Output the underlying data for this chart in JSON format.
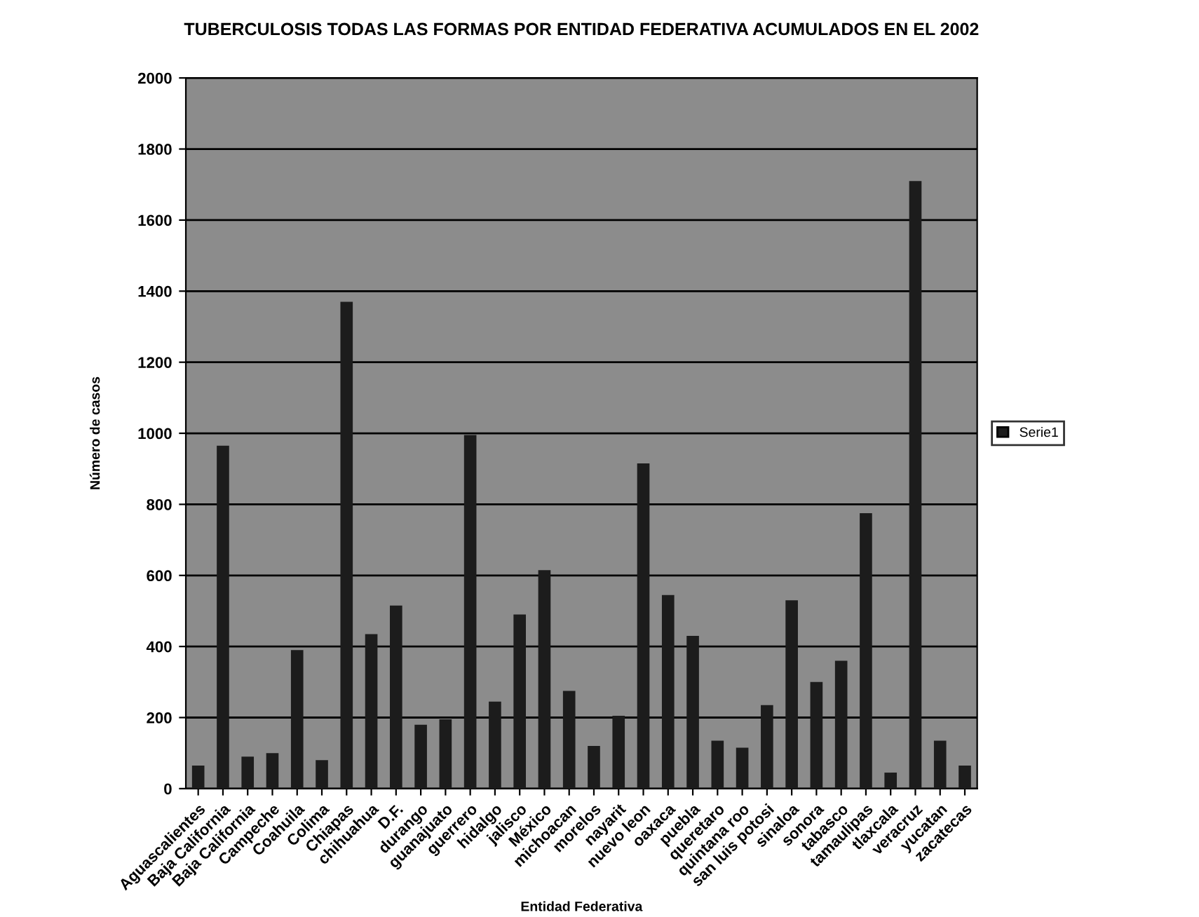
{
  "chart_data": {
    "type": "bar",
    "title": "TUBERCULOSIS TODAS LAS FORMAS POR ENTIDAD FEDERATIVA ACUMULADOS EN EL 2002",
    "xlabel": "Entidad Federativa",
    "ylabel": "Número de casos",
    "categories": [
      "Aguascalientes",
      "Baja California",
      "Baja California",
      "Campeche",
      "Coahuila",
      "Colima",
      "Chiapas",
      "chihuahua",
      "D.F.",
      "durango",
      "guanajuato",
      "guerrero",
      "hidalgo",
      "jalisco",
      "México",
      "michoacan",
      "morelos",
      "nayarit",
      "nuevo leon",
      "oaxaca",
      "puebla",
      "queretaro",
      "quintana roo",
      "san luis potosi",
      "sinaloa",
      "sonora",
      "tabasco",
      "tamaulipas",
      "tlaxcala",
      "veracruz",
      "yucatan",
      "zacatecas"
    ],
    "series": [
      {
        "name": "Serie1",
        "color": "#1c1c1c",
        "values": [
          65,
          965,
          90,
          100,
          390,
          80,
          1370,
          435,
          515,
          180,
          195,
          995,
          245,
          490,
          615,
          275,
          120,
          205,
          915,
          545,
          430,
          135,
          115,
          235,
          530,
          300,
          360,
          775,
          45,
          1710,
          135,
          65
        ]
      }
    ],
    "ylim": [
      0,
      2000
    ],
    "yticks": [
      0,
      200,
      400,
      600,
      800,
      1000,
      1200,
      1400,
      1600,
      1800,
      2000
    ],
    "grid": "y",
    "legend": "right"
  }
}
